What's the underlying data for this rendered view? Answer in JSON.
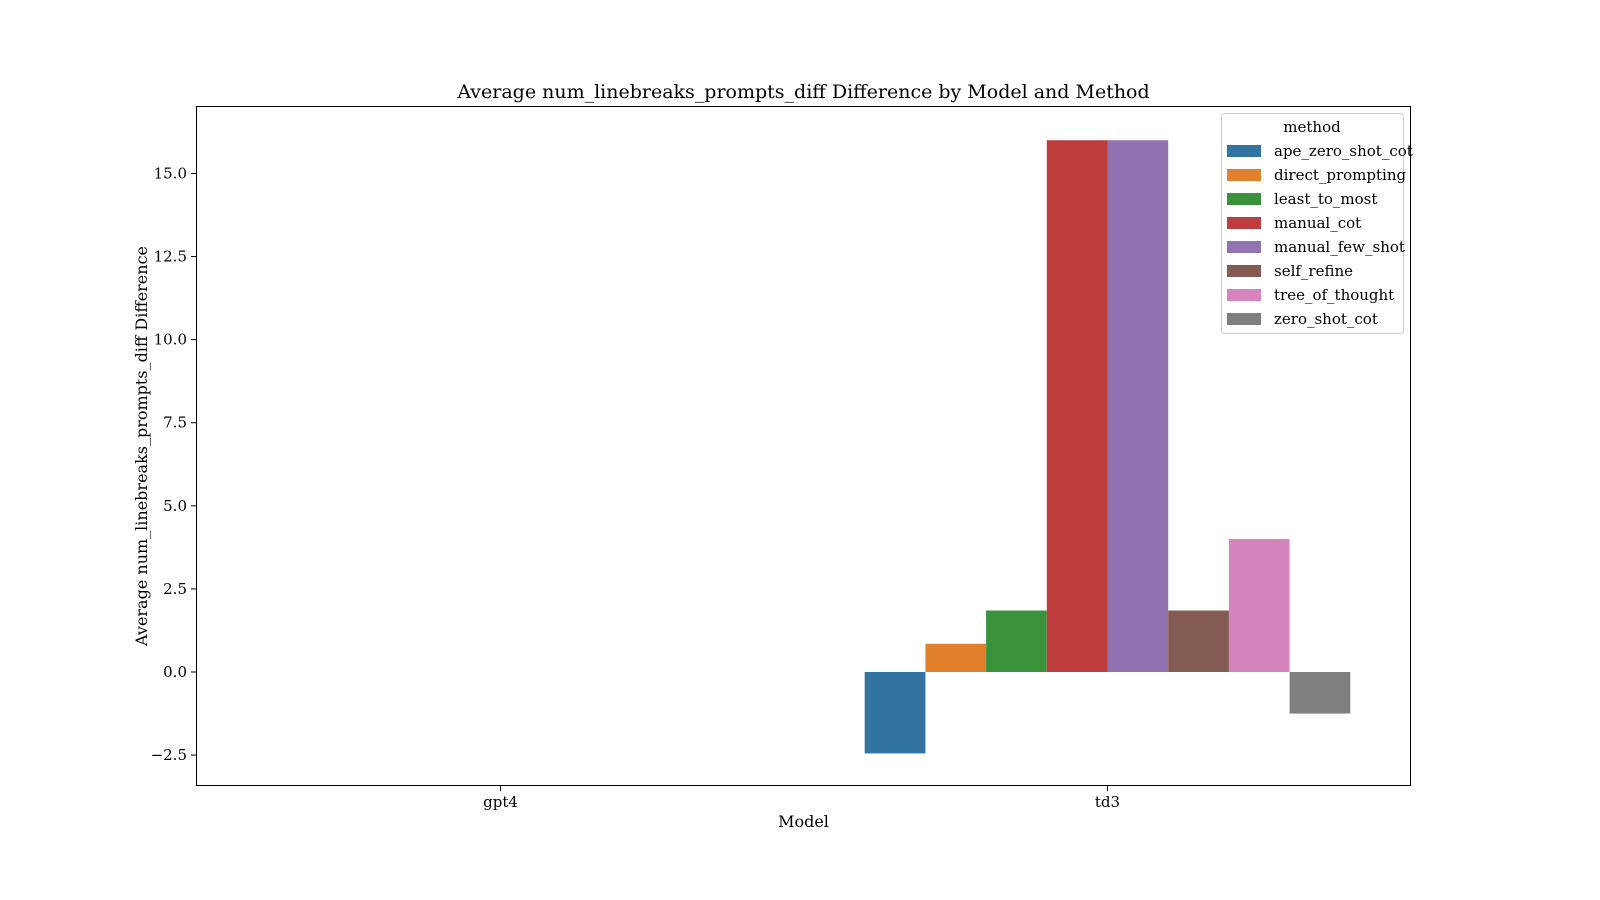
{
  "chart_data": {
    "type": "bar",
    "title": "Average num_linebreaks_prompts_diff Difference by Model and Method",
    "xlabel": "Model",
    "ylabel": "Average num_linebreaks_prompts_diff Difference",
    "categories": [
      "gpt4",
      "td3"
    ],
    "ylim": [
      -3.4,
      17.0
    ],
    "yticks": [
      -2.5,
      0.0,
      2.5,
      5.0,
      7.5,
      10.0,
      12.5,
      15.0
    ],
    "ytick_labels": [
      "−2.5",
      "0.0",
      "2.5",
      "5.0",
      "7.5",
      "10.0",
      "12.5",
      "15.0"
    ],
    "grid": false,
    "legend": {
      "title": "method",
      "position": "top-right"
    },
    "series": [
      {
        "name": "ape_zero_shot_cot",
        "color": "#3274a1",
        "values": [
          null,
          -2.45
        ]
      },
      {
        "name": "direct_prompting",
        "color": "#e1812c",
        "values": [
          null,
          0.85
        ]
      },
      {
        "name": "least_to_most",
        "color": "#3a923a",
        "values": [
          null,
          1.85
        ]
      },
      {
        "name": "manual_cot",
        "color": "#c03d3e",
        "values": [
          null,
          16.0
        ]
      },
      {
        "name": "manual_few_shot",
        "color": "#9372b2",
        "values": [
          null,
          16.0
        ]
      },
      {
        "name": "self_refine",
        "color": "#845b53",
        "values": [
          null,
          1.85
        ]
      },
      {
        "name": "tree_of_thought",
        "color": "#d684bd",
        "values": [
          null,
          4.0
        ]
      },
      {
        "name": "zero_shot_cot",
        "color": "#7f7f7f",
        "values": [
          null,
          -1.25
        ]
      }
    ]
  }
}
